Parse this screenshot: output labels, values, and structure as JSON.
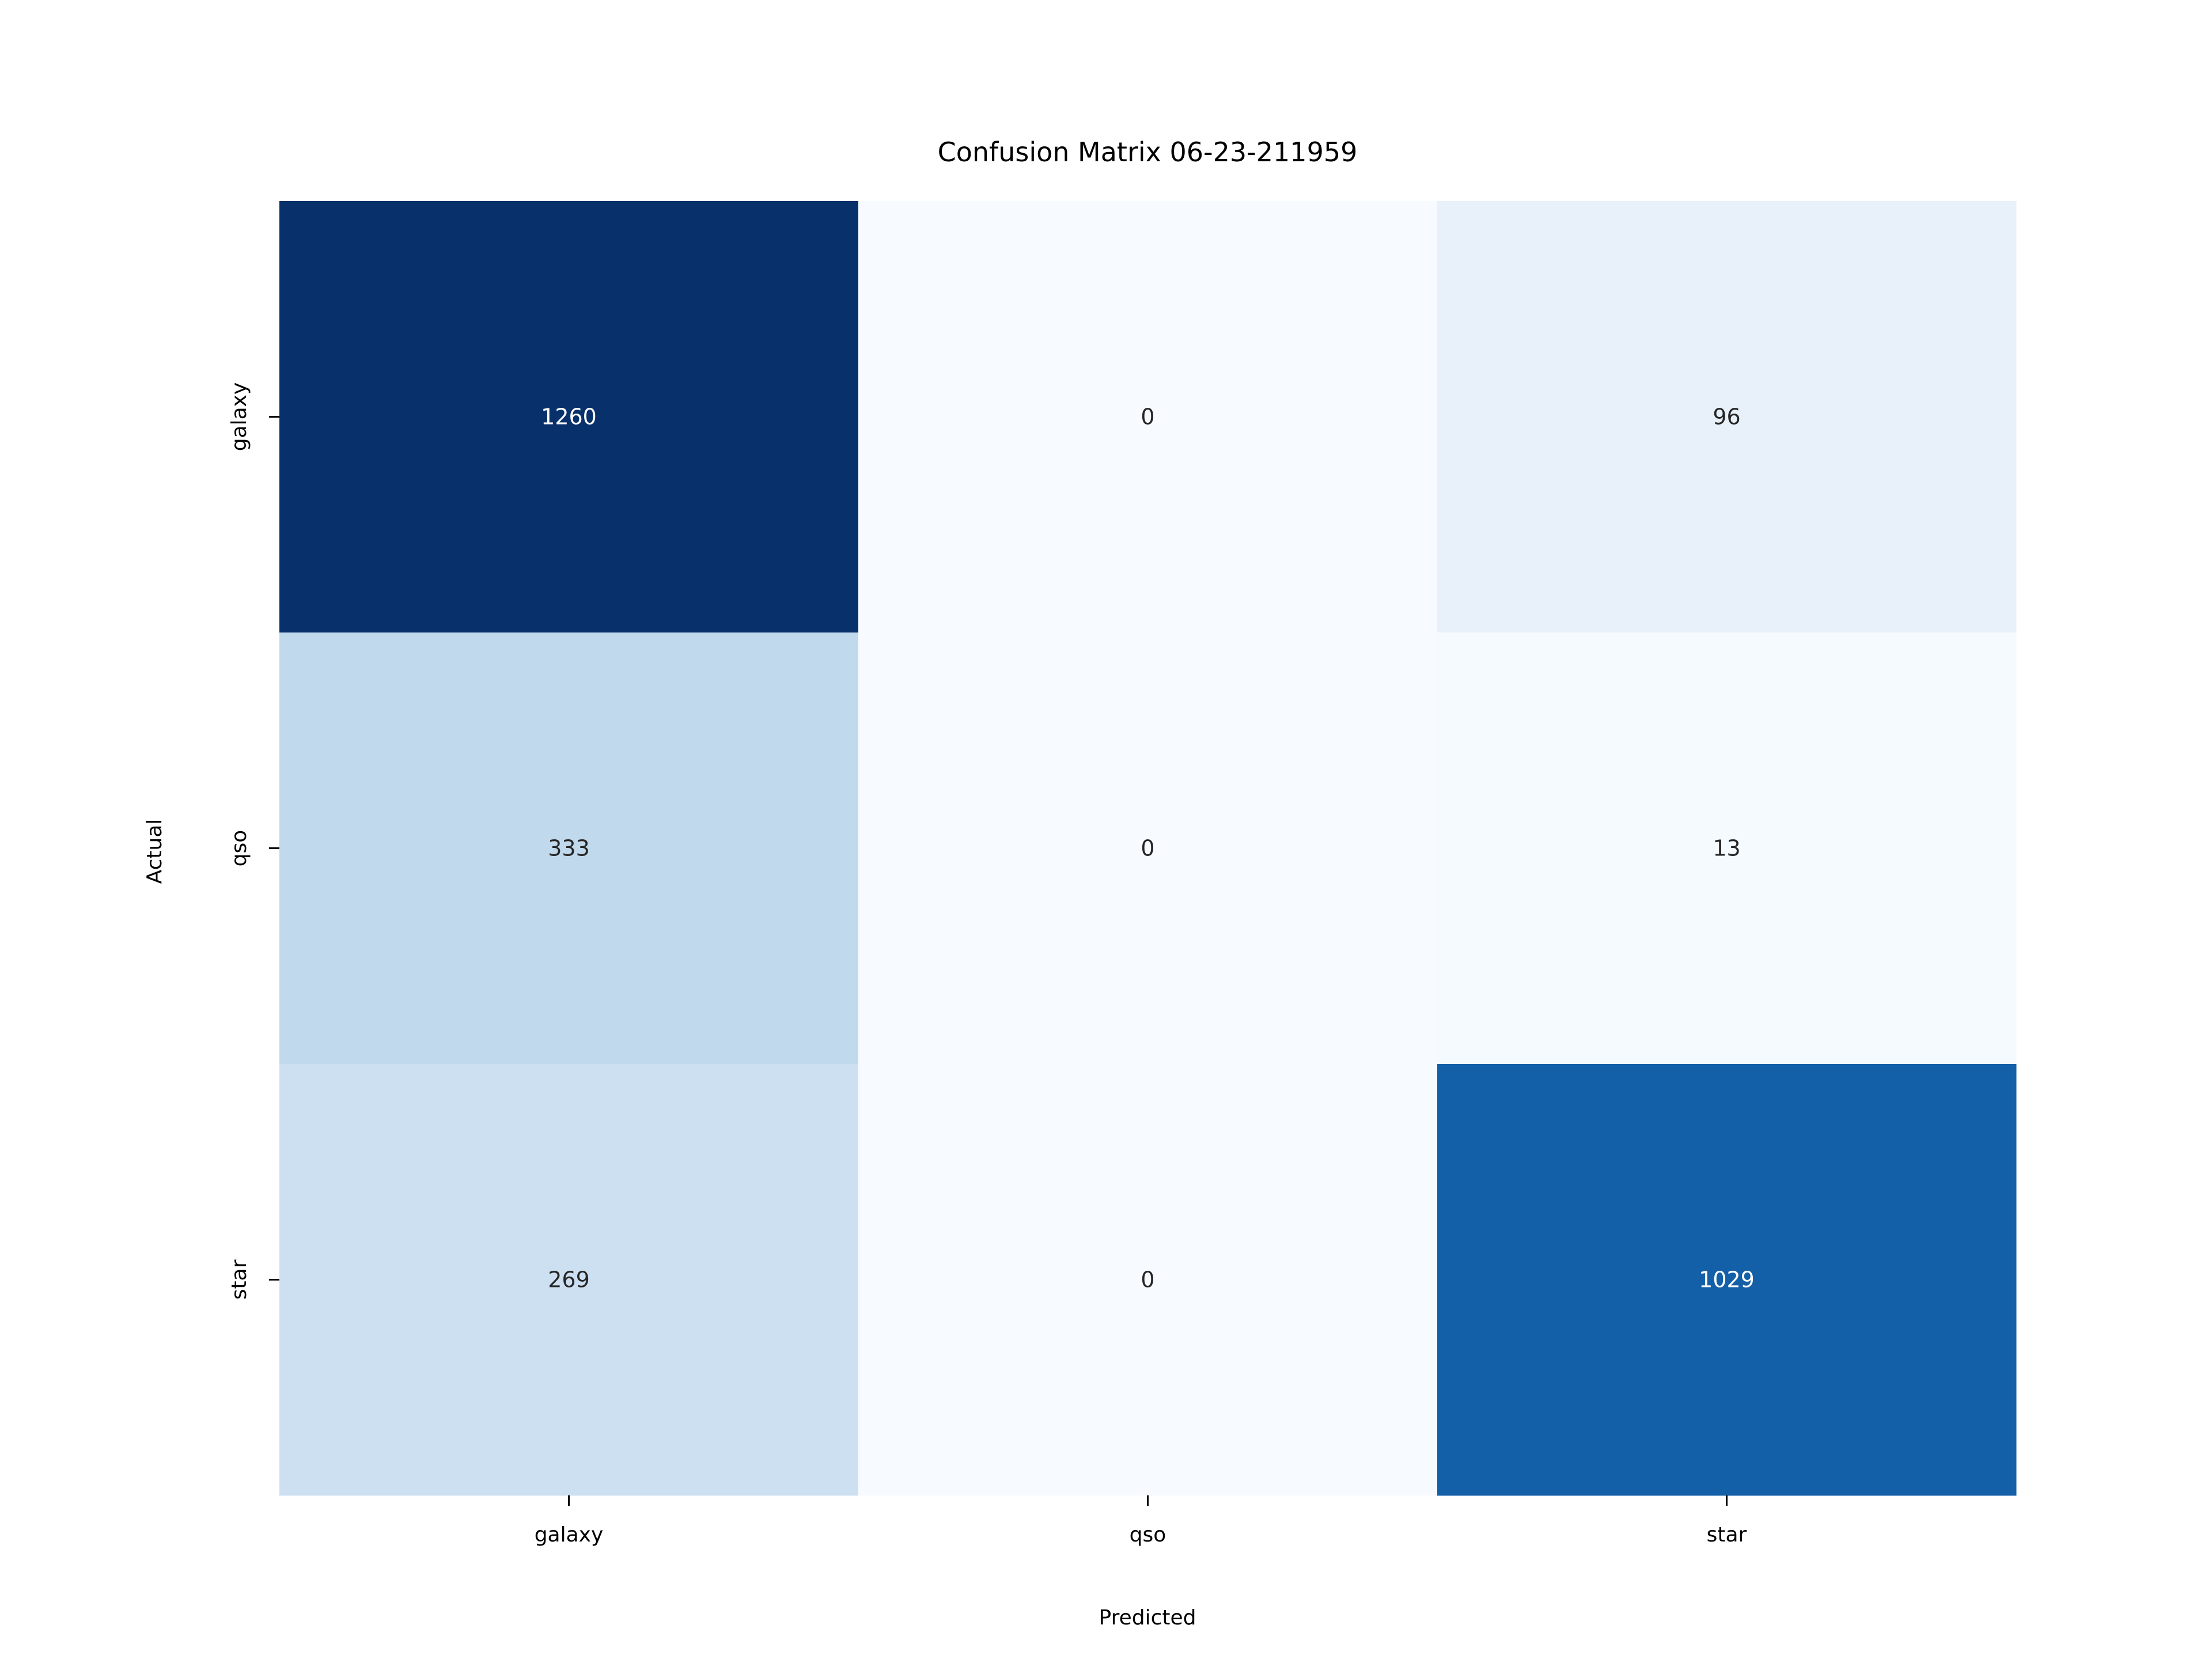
{
  "chart_data": {
    "type": "heatmap",
    "title": "Confusion Matrix 06-23-211959",
    "xlabel": "Predicted",
    "ylabel": "Actual",
    "x_categories": [
      "galaxy",
      "qso",
      "star"
    ],
    "y_categories": [
      "galaxy",
      "qso",
      "star"
    ],
    "values": [
      [
        1260,
        0,
        96
      ],
      [
        333,
        0,
        13
      ],
      [
        269,
        0,
        1029
      ]
    ],
    "colormap": "Blues",
    "colorbar": false,
    "value_range": [
      0,
      1260
    ]
  }
}
